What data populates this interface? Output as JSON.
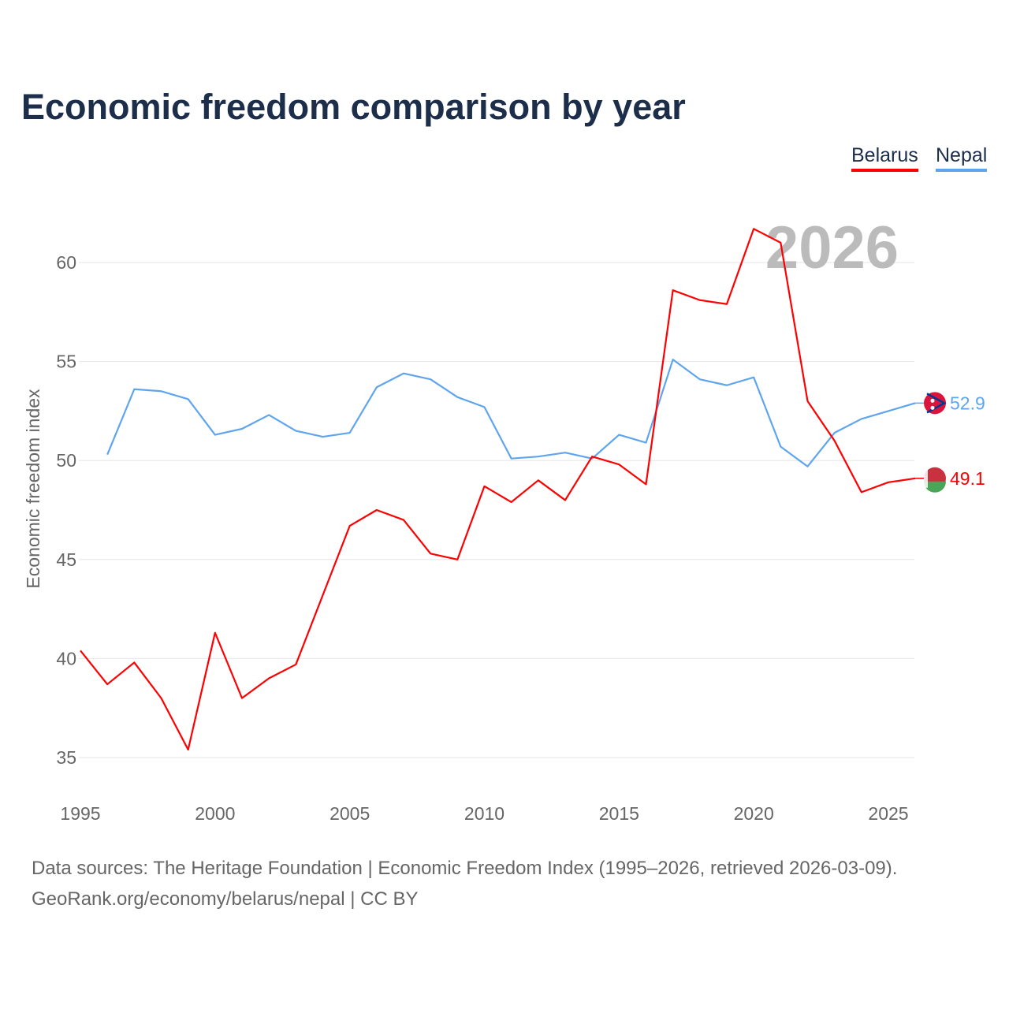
{
  "chart_data": {
    "type": "line",
    "title": "Economic freedom comparison by year",
    "xlabel": "",
    "ylabel": "Economic freedom index",
    "xlim": [
      1995,
      2026
    ],
    "ylim": [
      33.5,
      63
    ],
    "x_ticks": [
      1995,
      2000,
      2005,
      2010,
      2015,
      2020,
      2025
    ],
    "y_ticks": [
      35,
      40,
      45,
      50,
      55,
      60
    ],
    "grid": true,
    "legend_placement": "top-right",
    "watermark_year": "2026",
    "series": [
      {
        "name": "Belarus",
        "color": "#ff0000",
        "end_label": "49.1",
        "x": [
          1995,
          1996,
          1997,
          1998,
          1999,
          2000,
          2001,
          2002,
          2003,
          2004,
          2005,
          2006,
          2007,
          2008,
          2009,
          2010,
          2011,
          2012,
          2013,
          2014,
          2015,
          2016,
          2017,
          2018,
          2019,
          2020,
          2021,
          2022,
          2023,
          2024,
          2025,
          2026
        ],
        "values": [
          40.4,
          38.7,
          39.8,
          38.0,
          35.4,
          41.3,
          38.0,
          39.0,
          39.7,
          43.2,
          46.7,
          47.5,
          47.0,
          45.3,
          45.0,
          48.7,
          47.9,
          49.0,
          48.0,
          50.2,
          49.8,
          48.8,
          58.6,
          58.1,
          57.9,
          61.7,
          61.0,
          53.0,
          51.0,
          48.4,
          48.9,
          49.1
        ]
      },
      {
        "name": "Nepal",
        "color": "#5fa5ee",
        "end_label": "52.9",
        "x": [
          1996,
          1997,
          1998,
          1999,
          2000,
          2001,
          2002,
          2003,
          2004,
          2005,
          2006,
          2007,
          2008,
          2009,
          2010,
          2011,
          2012,
          2013,
          2014,
          2015,
          2016,
          2017,
          2018,
          2019,
          2020,
          2021,
          2022,
          2023,
          2024,
          2025,
          2026
        ],
        "values": [
          50.3,
          53.6,
          53.5,
          53.1,
          51.3,
          51.6,
          52.3,
          51.5,
          51.2,
          51.4,
          53.7,
          54.4,
          54.1,
          53.2,
          52.7,
          50.1,
          50.2,
          50.4,
          50.1,
          51.3,
          50.9,
          55.1,
          54.1,
          53.8,
          54.2,
          50.7,
          49.7,
          51.4,
          52.1,
          52.5,
          52.9
        ]
      }
    ]
  },
  "footer": {
    "line1": "Data sources: The Heritage Foundation | Economic Freedom Index (1995–2026, retrieved 2026-03-09).",
    "line2": "GeoRank.org/economy/belarus/nepal | CC BY"
  }
}
